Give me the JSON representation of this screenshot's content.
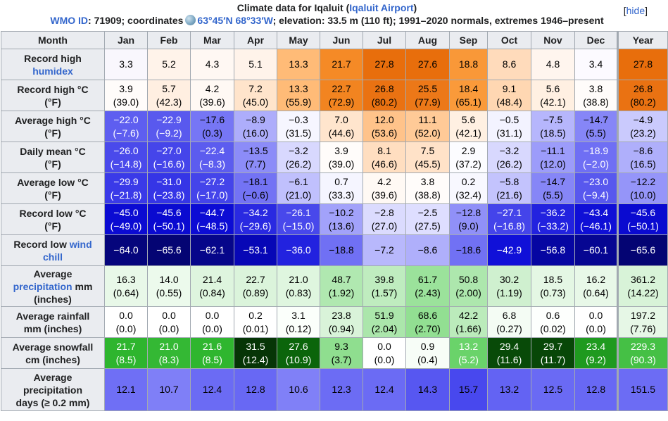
{
  "header": {
    "title_prefix": "Climate data for Iqaluit (",
    "title_link": "Iqaluit Airport",
    "title_suffix": ")",
    "hide_label": "[hide]",
    "wmo_label": "WMO ID",
    "wmo_rest": ": 71909; coordinates",
    "coords": "63°45′N 68°33′W",
    "details": "; elevation: 33.5 m (110 ft); 1991–2020 normals, extremes 1946–present"
  },
  "columns": [
    "Month",
    "Jan",
    "Feb",
    "Mar",
    "Apr",
    "May",
    "Jun",
    "Jul",
    "Aug",
    "Sep",
    "Oct",
    "Nov",
    "Dec",
    "Year"
  ],
  "rows": [
    {
      "label_lines": [
        {
          "text": "Record high",
          "link": false
        },
        {
          "text": "humidex",
          "link": true
        }
      ],
      "cells": [
        {
          "v": "3.3",
          "bg": "#f9f7fd",
          "fg": "#000000"
        },
        {
          "v": "5.2",
          "bg": "#fff3ea",
          "fg": "#000000"
        },
        {
          "v": "4.3",
          "bg": "#fff8f3",
          "fg": "#000000"
        },
        {
          "v": "5.1",
          "bg": "#fff3ea",
          "fg": "#000000"
        },
        {
          "v": "13.3",
          "bg": "#ffbb77",
          "fg": "#000000"
        },
        {
          "v": "21.7",
          "bg": "#f58a26",
          "fg": "#000000"
        },
        {
          "v": "27.8",
          "bg": "#e86e0c",
          "fg": "#000000"
        },
        {
          "v": "27.6",
          "bg": "#e86e0c",
          "fg": "#000000"
        },
        {
          "v": "18.8",
          "bg": "#f99838",
          "fg": "#000000"
        },
        {
          "v": "8.6",
          "bg": "#ffdbbb",
          "fg": "#000000"
        },
        {
          "v": "4.8",
          "bg": "#fff5ee",
          "fg": "#000000"
        },
        {
          "v": "3.4",
          "bg": "#fcfaff",
          "fg": "#000000"
        },
        {
          "v": "27.8",
          "bg": "#e86e0c",
          "fg": "#000000"
        }
      ]
    },
    {
      "label_lines": [
        {
          "text": "Record high °C",
          "link": false
        },
        {
          "text": "(°F)",
          "link": false
        }
      ],
      "cells": [
        {
          "v": "3.9",
          "f": "(39.0)",
          "bg": "#fffcfa",
          "fg": "#000000"
        },
        {
          "v": "5.7",
          "f": "(42.3)",
          "bg": "#ffefe1",
          "fg": "#000000"
        },
        {
          "v": "4.2",
          "f": "(39.6)",
          "bg": "#fff9f4",
          "fg": "#000000"
        },
        {
          "v": "7.2",
          "f": "(45.0)",
          "bg": "#ffe4cb",
          "fg": "#000000"
        },
        {
          "v": "13.3",
          "f": "(55.9)",
          "bg": "#ffbb77",
          "fg": "#000000"
        },
        {
          "v": "22.7",
          "f": "(72.9)",
          "bg": "#f28420",
          "fg": "#000000"
        },
        {
          "v": "26.8",
          "f": "(80.2)",
          "bg": "#ea7212",
          "fg": "#000000"
        },
        {
          "v": "25.5",
          "f": "(77.9)",
          "bg": "#ec7818",
          "fg": "#000000"
        },
        {
          "v": "18.4",
          "f": "(65.1)",
          "bg": "#fa9a3a",
          "fg": "#000000"
        },
        {
          "v": "9.1",
          "f": "(48.4)",
          "bg": "#ffd7b2",
          "fg": "#000000"
        },
        {
          "v": "5.6",
          "f": "(42.1)",
          "bg": "#fff0e2",
          "fg": "#000000"
        },
        {
          "v": "3.8",
          "f": "(38.8)",
          "bg": "#fffcfa",
          "fg": "#000000"
        },
        {
          "v": "26.8",
          "f": "(80.2)",
          "bg": "#ea7212",
          "fg": "#000000"
        }
      ]
    },
    {
      "label_lines": [
        {
          "text": "Average high °C",
          "link": false
        },
        {
          "text": "(°F)",
          "link": false
        }
      ],
      "cells": [
        {
          "v": "−22.0",
          "f": "(−7.6)",
          "bg": "#5e5ef0",
          "fg": "#ffffff"
        },
        {
          "v": "−22.9",
          "f": "(−9.2)",
          "bg": "#5959ee",
          "fg": "#ffffff"
        },
        {
          "v": "−17.6",
          "f": "(0.3)",
          "bg": "#7676f5",
          "fg": "#000000"
        },
        {
          "v": "−8.9",
          "f": "(16.0)",
          "bg": "#adadfb",
          "fg": "#000000"
        },
        {
          "v": "−0.3",
          "f": "(31.5)",
          "bg": "#f6f6ff",
          "fg": "#000000"
        },
        {
          "v": "7.0",
          "f": "(44.6)",
          "bg": "#ffe5cd",
          "fg": "#000000"
        },
        {
          "v": "12.0",
          "f": "(53.6)",
          "bg": "#ffc38a",
          "fg": "#000000"
        },
        {
          "v": "11.1",
          "f": "(52.0)",
          "bg": "#ffca97",
          "fg": "#000000"
        },
        {
          "v": "5.6",
          "f": "(42.1)",
          "bg": "#fff0e2",
          "fg": "#000000"
        },
        {
          "v": "−0.5",
          "f": "(31.1)",
          "bg": "#f3f3ff",
          "fg": "#000000"
        },
        {
          "v": "−7.5",
          "f": "(18.5)",
          "bg": "#b6b6fc",
          "fg": "#000000"
        },
        {
          "v": "−14.7",
          "f": "(5.5)",
          "bg": "#8686f7",
          "fg": "#000000"
        },
        {
          "v": "−4.9",
          "f": "(23.2)",
          "bg": "#cacafd",
          "fg": "#000000"
        }
      ]
    },
    {
      "label_lines": [
        {
          "text": "Daily mean °C",
          "link": false
        },
        {
          "text": "(°F)",
          "link": false
        }
      ],
      "cells": [
        {
          "v": "−26.0",
          "f": "(−14.8)",
          "bg": "#4a4aeb",
          "fg": "#ffffff"
        },
        {
          "v": "−27.0",
          "f": "(−16.6)",
          "bg": "#4545ea",
          "fg": "#ffffff"
        },
        {
          "v": "−22.4",
          "f": "(−8.3)",
          "bg": "#5c5cef",
          "fg": "#ffffff"
        },
        {
          "v": "−13.5",
          "f": "(7.7)",
          "bg": "#8c8cf8",
          "fg": "#000000"
        },
        {
          "v": "−3.2",
          "f": "(26.2)",
          "bg": "#d8d8fe",
          "fg": "#000000"
        },
        {
          "v": "3.9",
          "f": "(39.0)",
          "bg": "#fffcfa",
          "fg": "#000000"
        },
        {
          "v": "8.1",
          "f": "(46.6)",
          "bg": "#ffdec0",
          "fg": "#000000"
        },
        {
          "v": "7.5",
          "f": "(45.5)",
          "bg": "#ffe2c8",
          "fg": "#000000"
        },
        {
          "v": "2.9",
          "f": "(37.2)",
          "bg": "#fcfcff",
          "fg": "#000000"
        },
        {
          "v": "−3.2",
          "f": "(26.2)",
          "bg": "#d8d8fe",
          "fg": "#000000"
        },
        {
          "v": "−11.1",
          "f": "(12.0)",
          "bg": "#9c9cfa",
          "fg": "#000000"
        },
        {
          "v": "−18.9",
          "f": "(−2.0)",
          "bg": "#6f6ff4",
          "fg": "#ffffff"
        },
        {
          "v": "−8.6",
          "f": "(16.5)",
          "bg": "#afaffb",
          "fg": "#000000"
        }
      ]
    },
    {
      "label_lines": [
        {
          "text": "Average low °C",
          "link": false
        },
        {
          "text": "(°F)",
          "link": false
        }
      ],
      "cells": [
        {
          "v": "−29.9",
          "f": "(−21.8)",
          "bg": "#3a3ae8",
          "fg": "#ffffff"
        },
        {
          "v": "−31.0",
          "f": "(−23.8)",
          "bg": "#3535e6",
          "fg": "#ffffff"
        },
        {
          "v": "−27.2",
          "f": "(−17.0)",
          "bg": "#4444ea",
          "fg": "#ffffff"
        },
        {
          "v": "−18.1",
          "f": "(−0.6)",
          "bg": "#7373f4",
          "fg": "#000000"
        },
        {
          "v": "−6.1",
          "f": "(21.0)",
          "bg": "#c0c0fd",
          "fg": "#000000"
        },
        {
          "v": "0.7",
          "f": "(33.3)",
          "bg": "#f5f5ff",
          "fg": "#000000"
        },
        {
          "v": "4.2",
          "f": "(39.6)",
          "bg": "#fff9f4",
          "fg": "#000000"
        },
        {
          "v": "3.8",
          "f": "(38.8)",
          "bg": "#fffcfa",
          "fg": "#000000"
        },
        {
          "v": "0.2",
          "f": "(32.4)",
          "bg": "#f8f8ff",
          "fg": "#000000"
        },
        {
          "v": "−5.8",
          "f": "(21.6)",
          "bg": "#c3c3fd",
          "fg": "#000000"
        },
        {
          "v": "−14.7",
          "f": "(5.5)",
          "bg": "#8686f7",
          "fg": "#000000"
        },
        {
          "v": "−23.0",
          "f": "(−9.4)",
          "bg": "#5858ee",
          "fg": "#ffffff"
        },
        {
          "v": "−12.2",
          "f": "(10.0)",
          "bg": "#9595f9",
          "fg": "#000000"
        }
      ]
    },
    {
      "label_lines": [
        {
          "text": "Record low °C",
          "link": false
        },
        {
          "text": "(°F)",
          "link": false
        }
      ],
      "cells": [
        {
          "v": "−45.0",
          "f": "(−49.0)",
          "bg": "#0b0bd2",
          "fg": "#ffffff"
        },
        {
          "v": "−45.6",
          "f": "(−50.1)",
          "bg": "#0a0ad0",
          "fg": "#ffffff"
        },
        {
          "v": "−44.7",
          "f": "(−48.5)",
          "bg": "#0c0cd4",
          "fg": "#ffffff"
        },
        {
          "v": "−34.2",
          "f": "(−29.6)",
          "bg": "#2929e1",
          "fg": "#ffffff"
        },
        {
          "v": "−26.1",
          "f": "(−15.0)",
          "bg": "#4848eb",
          "fg": "#ffffff"
        },
        {
          "v": "−10.2",
          "f": "(13.6)",
          "bg": "#a2a2fa",
          "fg": "#000000"
        },
        {
          "v": "−2.8",
          "f": "(27.0)",
          "bg": "#dbdbfe",
          "fg": "#000000"
        },
        {
          "v": "−2.5",
          "f": "(27.5)",
          "bg": "#dedeff",
          "fg": "#000000"
        },
        {
          "v": "−12.8",
          "f": "(9.0)",
          "bg": "#9090f8",
          "fg": "#000000"
        },
        {
          "v": "−27.1",
          "f": "(−16.8)",
          "bg": "#4444ea",
          "fg": "#ffffff"
        },
        {
          "v": "−36.2",
          "f": "(−33.2)",
          "bg": "#2222df",
          "fg": "#ffffff"
        },
        {
          "v": "−43.4",
          "f": "(−46.1)",
          "bg": "#0f0fd6",
          "fg": "#ffffff"
        },
        {
          "v": "−45.6",
          "f": "(−50.1)",
          "bg": "#0a0ad0",
          "fg": "#ffffff"
        }
      ]
    },
    {
      "label_lines": [
        {
          "text": "Record low ",
          "link": false,
          "inline_next": true
        },
        {
          "text": "wind",
          "link": true
        },
        {
          "text": "chill",
          "link": true
        }
      ],
      "cells": [
        {
          "v": "−64.0",
          "bg": "#05057c",
          "fg": "#ffffff"
        },
        {
          "v": "−65.6",
          "bg": "#040473",
          "fg": "#ffffff"
        },
        {
          "v": "−62.1",
          "bg": "#06068a",
          "fg": "#ffffff"
        },
        {
          "v": "−53.1",
          "bg": "#0707b6",
          "fg": "#ffffff"
        },
        {
          "v": "−36.0",
          "bg": "#2222df",
          "fg": "#ffffff"
        },
        {
          "v": "−18.8",
          "bg": "#7070f4",
          "fg": "#000000"
        },
        {
          "v": "−7.2",
          "bg": "#b8b8fc",
          "fg": "#000000"
        },
        {
          "v": "−8.6",
          "bg": "#afaffb",
          "fg": "#000000"
        },
        {
          "v": "−18.6",
          "bg": "#7171f4",
          "fg": "#000000"
        },
        {
          "v": "−42.9",
          "bg": "#1010d8",
          "fg": "#ffffff"
        },
        {
          "v": "−56.8",
          "bg": "#0606a2",
          "fg": "#ffffff"
        },
        {
          "v": "−60.1",
          "bg": "#060692",
          "fg": "#ffffff"
        },
        {
          "v": "−65.6",
          "bg": "#040473",
          "fg": "#ffffff"
        }
      ]
    },
    {
      "label_lines": [
        {
          "text": "Average",
          "link": false
        },
        {
          "text": "precipitation",
          "link": true,
          "inline_next": true
        },
        {
          "text": " mm",
          "link": false
        },
        {
          "text": "(inches)",
          "link": false
        }
      ],
      "cells": [
        {
          "v": "16.3",
          "f": "(0.64)",
          "bg": "#e8f8e8",
          "fg": "#000000"
        },
        {
          "v": "14.0",
          "f": "(0.55)",
          "bg": "#ecfaec",
          "fg": "#000000"
        },
        {
          "v": "21.4",
          "f": "(0.84)",
          "bg": "#def5de",
          "fg": "#000000"
        },
        {
          "v": "22.7",
          "f": "(0.89)",
          "bg": "#dbf4db",
          "fg": "#000000"
        },
        {
          "v": "21.0",
          "f": "(0.83)",
          "bg": "#dff6df",
          "fg": "#000000"
        },
        {
          "v": "48.7",
          "f": "(1.92)",
          "bg": "#b0e8b0",
          "fg": "#000000"
        },
        {
          "v": "39.8",
          "f": "(1.57)",
          "bg": "#bfecbf",
          "fg": "#000000"
        },
        {
          "v": "61.7",
          "f": "(2.43)",
          "bg": "#9be29b",
          "fg": "#000000"
        },
        {
          "v": "50.8",
          "f": "(2.00)",
          "bg": "#ade7ad",
          "fg": "#000000"
        },
        {
          "v": "30.2",
          "f": "(1.19)",
          "bg": "#cff0cf",
          "fg": "#000000"
        },
        {
          "v": "18.5",
          "f": "(0.73)",
          "bg": "#e4f7e4",
          "fg": "#000000"
        },
        {
          "v": "16.2",
          "f": "(0.64)",
          "bg": "#e8f8e8",
          "fg": "#000000"
        },
        {
          "v": "361.2",
          "f": "(14.22)",
          "bg": "#d8f3d8",
          "fg": "#000000"
        }
      ]
    },
    {
      "label_lines": [
        {
          "text": "Average rainfall",
          "link": false
        },
        {
          "text": "mm (inches)",
          "link": false
        }
      ],
      "cells": [
        {
          "v": "0.0",
          "f": "(0.0)",
          "bg": "#ffffff",
          "fg": "#000000"
        },
        {
          "v": "0.0",
          "f": "(0.0)",
          "bg": "#ffffff",
          "fg": "#000000"
        },
        {
          "v": "0.0",
          "f": "(0.0)",
          "bg": "#ffffff",
          "fg": "#000000"
        },
        {
          "v": "0.2",
          "f": "(0.01)",
          "bg": "#ffffff",
          "fg": "#000000"
        },
        {
          "v": "3.1",
          "f": "(0.12)",
          "bg": "#fbfffb",
          "fg": "#000000"
        },
        {
          "v": "23.8",
          "f": "(0.94)",
          "bg": "#d9f3d9",
          "fg": "#000000"
        },
        {
          "v": "51.9",
          "f": "(2.04)",
          "bg": "#abe6ab",
          "fg": "#000000"
        },
        {
          "v": "68.6",
          "f": "(2.70)",
          "bg": "#92df92",
          "fg": "#000000"
        },
        {
          "v": "42.2",
          "f": "(1.66)",
          "bg": "#bbebbb",
          "fg": "#000000"
        },
        {
          "v": "6.8",
          "f": "(0.27)",
          "bg": "#f4fcf4",
          "fg": "#000000"
        },
        {
          "v": "0.6",
          "f": "(0.02)",
          "bg": "#fdfffd",
          "fg": "#000000"
        },
        {
          "v": "0.0",
          "f": "(0.0)",
          "bg": "#ffffff",
          "fg": "#000000"
        },
        {
          "v": "197.2",
          "f": "(7.76)",
          "bg": "#e6f7e6",
          "fg": "#000000"
        }
      ]
    },
    {
      "label_lines": [
        {
          "text": "Average snowfall",
          "link": false
        },
        {
          "text": "cm (inches)",
          "link": false
        }
      ],
      "cells": [
        {
          "v": "21.7",
          "f": "(8.5)",
          "bg": "#2eb52e",
          "fg": "#ffffff"
        },
        {
          "v": "21.0",
          "f": "(8.3)",
          "bg": "#34b834",
          "fg": "#ffffff"
        },
        {
          "v": "21.6",
          "f": "(8.5)",
          "bg": "#2fb62f",
          "fg": "#ffffff"
        },
        {
          "v": "31.5",
          "f": "(12.4)",
          "bg": "#063506",
          "fg": "#ffffff"
        },
        {
          "v": "27.6",
          "f": "(10.9)",
          "bg": "#0b650b",
          "fg": "#ffffff"
        },
        {
          "v": "9.3",
          "f": "(3.7)",
          "bg": "#8fde8f",
          "fg": "#000000"
        },
        {
          "v": "0.0",
          "f": "(0.0)",
          "bg": "#ffffff",
          "fg": "#000000"
        },
        {
          "v": "0.9",
          "f": "(0.4)",
          "bg": "#f7fdf7",
          "fg": "#000000"
        },
        {
          "v": "13.2",
          "f": "(5.2)",
          "bg": "#6ad36a",
          "fg": "#ffffff"
        },
        {
          "v": "29.4",
          "f": "(11.6)",
          "bg": "#084a08",
          "fg": "#ffffff"
        },
        {
          "v": "29.7",
          "f": "(11.7)",
          "bg": "#084708",
          "fg": "#ffffff"
        },
        {
          "v": "23.4",
          "f": "(9.2)",
          "bg": "#1f9a1f",
          "fg": "#ffffff"
        },
        {
          "v": "229.3",
          "f": "(90.3)",
          "bg": "#45c045",
          "fg": "#ffffff"
        }
      ]
    },
    {
      "label_lines": [
        {
          "text": "Average",
          "link": false
        },
        {
          "text": "precipitation",
          "link": false
        },
        {
          "text": "days (≥ 0.2 mm)",
          "link": false
        }
      ],
      "cells": [
        {
          "v": "12.1",
          "bg": "#6f6ff5",
          "fg": "#000000"
        },
        {
          "v": "10.7",
          "bg": "#7f7ff7",
          "fg": "#000000"
        },
        {
          "v": "12.4",
          "bg": "#6b6bf4",
          "fg": "#000000"
        },
        {
          "v": "12.8",
          "bg": "#6868f4",
          "fg": "#000000"
        },
        {
          "v": "10.6",
          "bg": "#8080f7",
          "fg": "#000000"
        },
        {
          "v": "12.3",
          "bg": "#6c6cf4",
          "fg": "#000000"
        },
        {
          "v": "12.4",
          "bg": "#6b6bf4",
          "fg": "#000000"
        },
        {
          "v": "14.3",
          "bg": "#5757f1",
          "fg": "#000000"
        },
        {
          "v": "15.7",
          "bg": "#4848ee",
          "fg": "#000000"
        },
        {
          "v": "13.2",
          "bg": "#6363f3",
          "fg": "#000000"
        },
        {
          "v": "12.5",
          "bg": "#6a6af4",
          "fg": "#000000"
        },
        {
          "v": "12.8",
          "bg": "#6868f4",
          "fg": "#000000"
        },
        {
          "v": "151.5",
          "bg": "#6c6cf4",
          "fg": "#000000"
        }
      ]
    }
  ]
}
